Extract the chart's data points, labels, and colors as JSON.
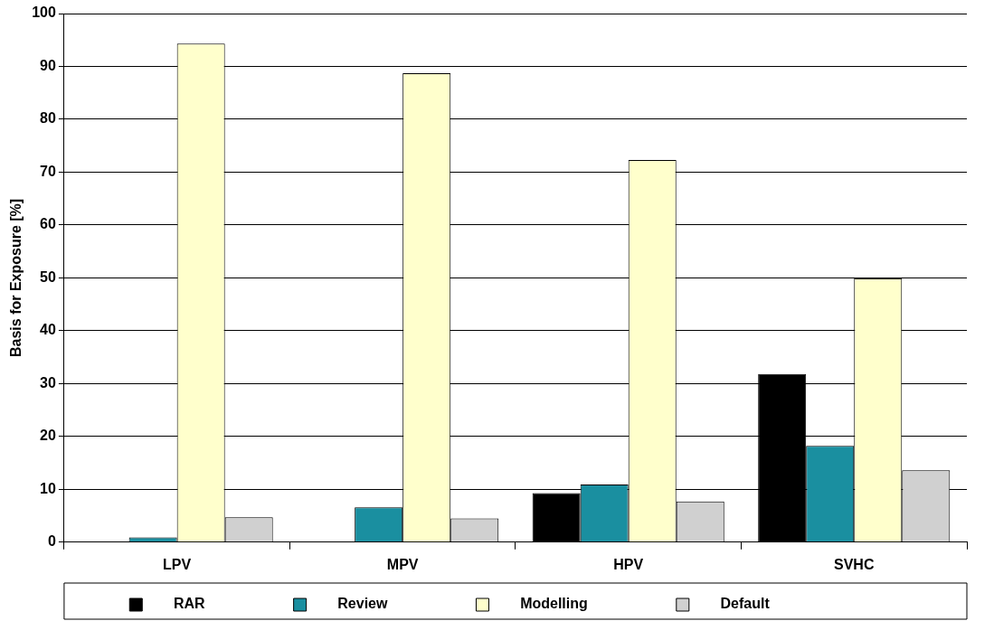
{
  "chart_data": {
    "type": "bar",
    "ylabel": "Basis for Exposure [%]",
    "categories": [
      "LPV",
      "MPV",
      "HPV",
      "SVHC"
    ],
    "series": [
      {
        "name": "RAR",
        "color": "#000000",
        "values": [
          0,
          0,
          9.3,
          31.8
        ]
      },
      {
        "name": "Review",
        "color": "#1a8fa0",
        "values": [
          0.9,
          6.6,
          10.9,
          18.2
        ]
      },
      {
        "name": "Modelling",
        "color": "#ffffcc",
        "values": [
          94.3,
          88.7,
          72.3,
          49.9
        ]
      },
      {
        "name": "Default",
        "color": "#d0d0d0",
        "values": [
          4.7,
          4.5,
          7.7,
          13.6
        ]
      }
    ],
    "ylim": [
      0,
      100
    ],
    "yticks": [
      0,
      10,
      20,
      30,
      40,
      50,
      60,
      70,
      80,
      90,
      100
    ],
    "grid": "y",
    "legend": "bottom"
  }
}
